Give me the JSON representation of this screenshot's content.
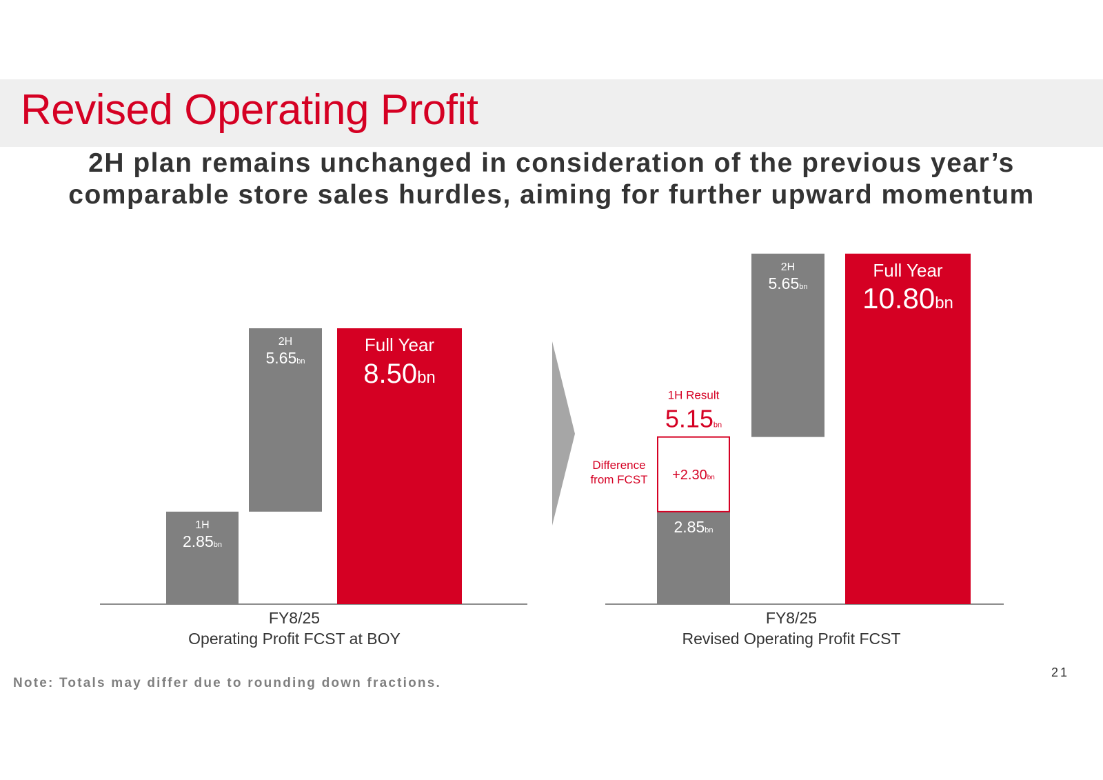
{
  "slide": {
    "title": "Revised Operating Profit",
    "subtitle_lines": [
      "2H plan remains unchanged in consideration of the previous year’s",
      "comparable store sales hurdles, aiming for further upward momentum"
    ],
    "note": "Note: Totals may differ due to rounding down fractions.",
    "page_number": "21"
  },
  "colors": {
    "accent": "#d50023",
    "gray_bar": "#808080",
    "arrow": "#a6a6a6",
    "text": "#333333"
  },
  "chart_data": [
    {
      "type": "bar",
      "subtype": "waterfall",
      "xlabel_lines": [
        "FY8/25",
        "Operating Profit FCST at BOY"
      ],
      "unit": "bn",
      "bars": [
        {
          "label": "1H",
          "start": 0,
          "value": 2.85,
          "value_text": "2.85",
          "color": "gray"
        },
        {
          "label": "2H",
          "start": 2.85,
          "value": 5.65,
          "value_text": "5.65",
          "color": "gray"
        },
        {
          "label": "Full Year",
          "start": 0,
          "value": 8.5,
          "value_text": "8.50",
          "color": "red"
        }
      ]
    },
    {
      "type": "bar",
      "subtype": "waterfall",
      "xlabel_lines": [
        "FY8/25",
        "Revised Operating Profit FCST"
      ],
      "unit": "bn",
      "bars": [
        {
          "label": "",
          "start": 0,
          "value": 2.85,
          "value_text": "2.85",
          "color": "gray"
        },
        {
          "label": "2H",
          "start": 5.15,
          "value": 5.65,
          "value_text": "5.65",
          "color": "gray"
        },
        {
          "label": "Full Year",
          "start": 0,
          "value": 10.8,
          "value_text": "10.80",
          "color": "red"
        }
      ],
      "difference": {
        "label_lines": [
          "Difference",
          "from FCST"
        ],
        "start": 2.85,
        "value": 2.3,
        "value_text": "+2.30"
      },
      "result": {
        "label": "1H Result",
        "value": 5.15,
        "value_text": "5.15"
      }
    }
  ]
}
